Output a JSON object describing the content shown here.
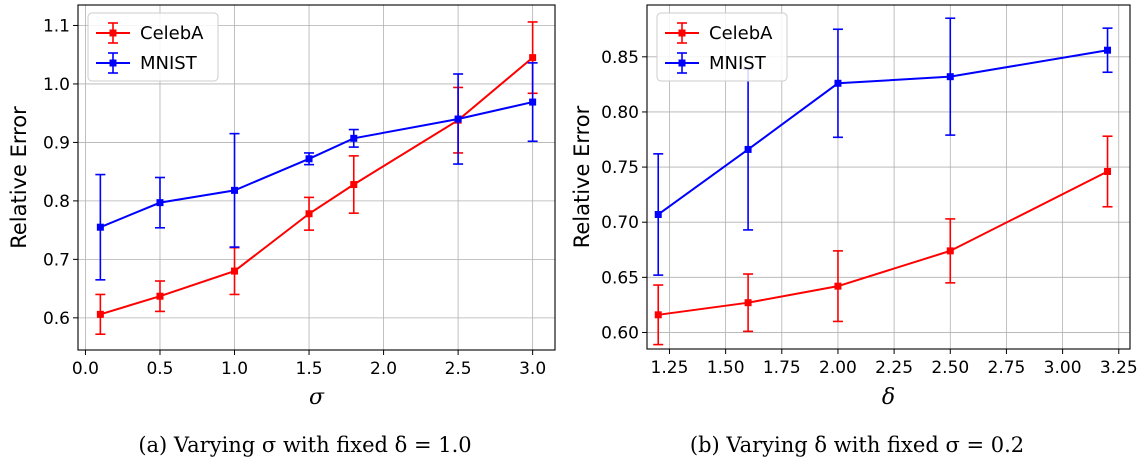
{
  "chart_data": [
    {
      "type": "line",
      "xlabel": "σ",
      "ylabel": "Relative Error",
      "caption": "(a) Varying σ with fixed δ = 1.0",
      "xlim": [
        -0.05,
        3.15
      ],
      "ylim": [
        0.545,
        1.135
      ],
      "xticks": [
        0.0,
        0.5,
        1.0,
        1.5,
        2.0,
        2.5,
        3.0
      ],
      "xtick_labels": [
        "0.0",
        "0.5",
        "1.0",
        "1.5",
        "2.0",
        "2.5",
        "3.0"
      ],
      "yticks": [
        0.6,
        0.7,
        0.8,
        0.9,
        1.0,
        1.1
      ],
      "ytick_labels": [
        "0.6",
        "0.7",
        "0.8",
        "0.9",
        "1.0",
        "1.1"
      ],
      "grid": true,
      "legend": "top-left",
      "series": [
        {
          "name": "CelebA",
          "color": "#ff0000",
          "x": [
            0.1,
            0.5,
            1.0,
            1.5,
            1.8,
            2.5,
            3.0
          ],
          "y": [
            0.606,
            0.637,
            0.68,
            0.778,
            0.828,
            0.938,
            1.045
          ],
          "err": [
            0.034,
            0.026,
            0.04,
            0.028,
            0.049,
            0.056,
            0.061
          ]
        },
        {
          "name": "MNIST",
          "color": "#0000ff",
          "x": [
            0.1,
            0.5,
            1.0,
            1.5,
            1.8,
            2.5,
            3.0
          ],
          "y": [
            0.755,
            0.797,
            0.818,
            0.872,
            0.907,
            0.94,
            0.969
          ],
          "err": [
            0.09,
            0.043,
            0.097,
            0.01,
            0.015,
            0.077,
            0.067
          ]
        }
      ]
    },
    {
      "type": "line",
      "xlabel": "δ",
      "ylabel": "Relative Error",
      "caption": "(b) Varying δ with fixed σ = 0.2",
      "xlim": [
        1.15,
        3.3
      ],
      "ylim": [
        0.585,
        0.897
      ],
      "xticks": [
        1.25,
        1.5,
        1.75,
        2.0,
        2.25,
        2.5,
        2.75,
        3.0,
        3.25
      ],
      "xtick_labels": [
        "1.25",
        "1.50",
        "1.75",
        "2.00",
        "2.25",
        "2.50",
        "2.75",
        "3.00",
        "3.25"
      ],
      "yticks": [
        0.6,
        0.65,
        0.7,
        0.75,
        0.8,
        0.85
      ],
      "ytick_labels": [
        "0.60",
        "0.65",
        "0.70",
        "0.75",
        "0.80",
        "0.85"
      ],
      "grid": true,
      "legend": "top-left",
      "series": [
        {
          "name": "CelebA",
          "color": "#ff0000",
          "x": [
            1.2,
            1.6,
            2.0,
            2.5,
            3.2
          ],
          "y": [
            0.616,
            0.627,
            0.642,
            0.674,
            0.746
          ],
          "err": [
            0.027,
            0.026,
            0.032,
            0.029,
            0.032
          ]
        },
        {
          "name": "MNIST",
          "color": "#0000ff",
          "x": [
            1.2,
            1.6,
            2.0,
            2.5,
            3.2
          ],
          "y": [
            0.707,
            0.766,
            0.826,
            0.832,
            0.856
          ],
          "err": [
            0.055,
            0.073,
            0.049,
            0.053,
            0.02
          ]
        }
      ]
    }
  ]
}
